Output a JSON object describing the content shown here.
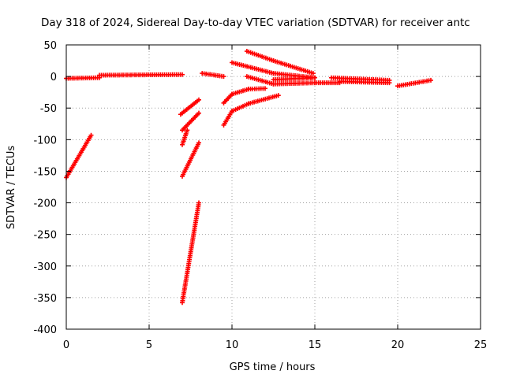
{
  "chart_data": {
    "type": "scatter",
    "title": "Day 318 of 2024, Sidereal Day-to-day VTEC variation (SDTVAR) for receiver antc",
    "xlabel": "GPS time / hours",
    "ylabel": "SDTVAR / TECUs",
    "xlim": [
      0,
      25
    ],
    "ylim": [
      -400,
      50
    ],
    "xticks": [
      0,
      5,
      10,
      15,
      20,
      25
    ],
    "yticks": [
      50,
      0,
      -50,
      -100,
      -150,
      -200,
      -250,
      -300,
      -350,
      -400
    ],
    "grid": true,
    "marker": "plus",
    "color": "#ff0000",
    "segments": [
      {
        "x": [
          0.0,
          1.5
        ],
        "y": [
          -160,
          -93
        ]
      },
      {
        "x": [
          0.0,
          2.0
        ],
        "y": [
          -3,
          -2
        ]
      },
      {
        "x": [
          2.0,
          7.0
        ],
        "y": [
          2,
          3
        ]
      },
      {
        "x": [
          6.9,
          8.0
        ],
        "y": [
          -60,
          -37
        ]
      },
      {
        "x": [
          7.0,
          8.0
        ],
        "y": [
          -85,
          -58
        ]
      },
      {
        "x": [
          7.0,
          7.3
        ],
        "y": [
          -108,
          -85
        ]
      },
      {
        "x": [
          7.0,
          8.0
        ],
        "y": [
          -158,
          -105
        ]
      },
      {
        "x": [
          7.0,
          8.0
        ],
        "y": [
          -358,
          -200
        ]
      },
      {
        "x": [
          8.2,
          9.5
        ],
        "y": [
          5,
          0
        ]
      },
      {
        "x": [
          9.5,
          10.0
        ],
        "y": [
          -77,
          -55
        ]
      },
      {
        "x": [
          9.5,
          10.0
        ],
        "y": [
          -42,
          -28
        ]
      },
      {
        "x": [
          10.0,
          11.0
        ],
        "y": [
          -55,
          -43
        ]
      },
      {
        "x": [
          10.0,
          11.0
        ],
        "y": [
          -28,
          -20
        ]
      },
      {
        "x": [
          11.0,
          12.8
        ],
        "y": [
          -43,
          -30
        ]
      },
      {
        "x": [
          11.0,
          12.0
        ],
        "y": [
          -20,
          -19
        ]
      },
      {
        "x": [
          10.0,
          12.5
        ],
        "y": [
          22,
          5
        ]
      },
      {
        "x": [
          12.5,
          15.0
        ],
        "y": [
          5,
          -2
        ]
      },
      {
        "x": [
          10.9,
          12.5
        ],
        "y": [
          40,
          25
        ]
      },
      {
        "x": [
          12.5,
          14.9
        ],
        "y": [
          25,
          5
        ]
      },
      {
        "x": [
          10.9,
          12.5
        ],
        "y": [
          0,
          -12
        ]
      },
      {
        "x": [
          12.5,
          15.0
        ],
        "y": [
          -12,
          -10
        ]
      },
      {
        "x": [
          12.5,
          15.0
        ],
        "y": [
          -5,
          -2
        ]
      },
      {
        "x": [
          15.0,
          16.5
        ],
        "y": [
          -10,
          -10
        ]
      },
      {
        "x": [
          16.0,
          19.5
        ],
        "y": [
          -2,
          -6
        ]
      },
      {
        "x": [
          16.5,
          19.5
        ],
        "y": [
          -8,
          -10
        ]
      },
      {
        "x": [
          20.0,
          22.0
        ],
        "y": [
          -15,
          -6
        ]
      }
    ]
  }
}
